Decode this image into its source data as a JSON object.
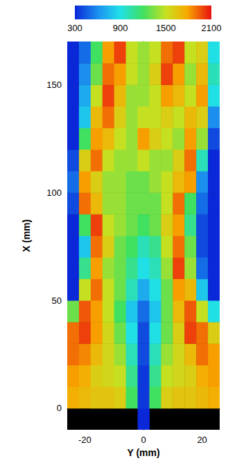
{
  "chart_data": {
    "type": "heatmap",
    "x_label": "Y (mm)",
    "y_label": "X (mm)",
    "xlim": [
      -26,
      26
    ],
    "ylim": [
      -10,
      170
    ],
    "xticks": [
      -20,
      0,
      20
    ],
    "yticks": [
      0,
      50,
      100,
      150
    ],
    "x": [
      -24,
      -20,
      -16,
      -12,
      -8,
      -4,
      0,
      4,
      8,
      12,
      16,
      20,
      24
    ],
    "y": [
      -5,
      5,
      15,
      25,
      35,
      45,
      55,
      65,
      75,
      85,
      95,
      105,
      115,
      125,
      135,
      145,
      155,
      165
    ],
    "cells": [
      [
        null,
        null,
        null,
        null,
        null,
        null,
        300,
        null,
        null,
        null,
        null,
        null,
        null
      ],
      [
        1750,
        1700,
        1650,
        1650,
        1600,
        1200,
        350,
        1200,
        1600,
        1650,
        1650,
        1700,
        1750
      ],
      [
        1800,
        1750,
        1600,
        1550,
        1500,
        1100,
        350,
        1100,
        1500,
        1550,
        1600,
        1750,
        1800
      ],
      [
        1900,
        1850,
        1700,
        1550,
        1400,
        1000,
        400,
        1000,
        1400,
        1550,
        1700,
        1900,
        1800
      ],
      [
        1900,
        2000,
        1800,
        1550,
        1300,
        900,
        400,
        900,
        1300,
        1600,
        2000,
        1900,
        1600
      ],
      [
        1300,
        1950,
        1800,
        1500,
        1200,
        800,
        500,
        800,
        1300,
        1700,
        1950,
        1500,
        900
      ],
      [
        300,
        1500,
        1900,
        1500,
        1300,
        1000,
        700,
        900,
        1300,
        1800,
        1700,
        800,
        300
      ],
      [
        300,
        1100,
        1800,
        1400,
        1300,
        1100,
        900,
        1000,
        1400,
        2000,
        1400,
        500,
        300
      ],
      [
        300,
        800,
        1900,
        1600,
        1300,
        1200,
        1000,
        1100,
        1500,
        1900,
        1300,
        400,
        300
      ],
      [
        300,
        1200,
        2000,
        1500,
        1400,
        1300,
        1200,
        1300,
        1600,
        1800,
        1100,
        400,
        300
      ],
      [
        400,
        1900,
        1700,
        1400,
        1400,
        1300,
        1300,
        1300,
        1500,
        1900,
        1200,
        500,
        300
      ],
      [
        500,
        1800,
        1600,
        1400,
        1400,
        1300,
        1300,
        1400,
        1500,
        1700,
        1800,
        600,
        300
      ],
      [
        400,
        1600,
        1900,
        1500,
        1400,
        1400,
        1500,
        1400,
        1400,
        1600,
        1900,
        1000,
        300
      ],
      [
        300,
        1200,
        1800,
        1700,
        1500,
        1400,
        1800,
        1600,
        1500,
        1400,
        1800,
        1400,
        400
      ],
      [
        300,
        800,
        1700,
        1900,
        1600,
        1400,
        1500,
        1500,
        1600,
        1500,
        1700,
        1600,
        600
      ],
      [
        300,
        700,
        1500,
        2000,
        1700,
        1400,
        1400,
        1500,
        1800,
        1700,
        1500,
        1800,
        900
      ],
      [
        300,
        600,
        1300,
        1900,
        1800,
        1500,
        1400,
        1600,
        2000,
        1800,
        1400,
        1700,
        1000
      ],
      [
        300,
        500,
        1200,
        1800,
        2000,
        1500,
        1400,
        1500,
        1900,
        2000,
        1500,
        1600,
        900
      ]
    ],
    "colorbar": {
      "range": [
        300,
        2100
      ],
      "ticks": [
        300,
        900,
        1500,
        2100
      ]
    }
  }
}
